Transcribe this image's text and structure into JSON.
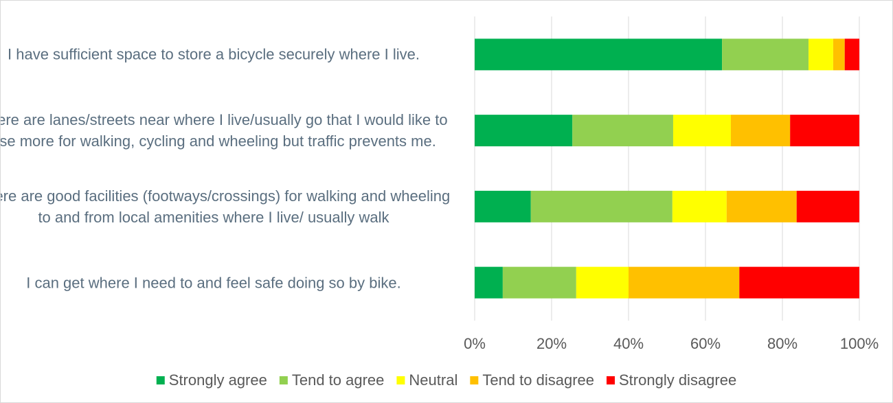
{
  "chart_data": {
    "type": "stacked_barh",
    "categories": [
      "I have sufficient space to store a bicycle securely where I live.",
      "There are lanes/streets near where I live/usually go that I would like to use more for walking, cycling and wheeling but traffic prevents me.",
      "There are good facilities (footways/crossings) for walking and wheeling to and from local amenities where I live/ usually walk",
      "I can get where I need to and feel safe doing so by bike."
    ],
    "series": [
      {
        "name": "Strongly agree",
        "color": "#00b050",
        "values": [
          64.3,
          25.4,
          14.6,
          7.3
        ]
      },
      {
        "name": "Tend to agree",
        "color": "#92d050",
        "values": [
          22.5,
          26.2,
          36.8,
          19.1
        ]
      },
      {
        "name": "Neutral",
        "color": "#ffff00",
        "values": [
          6.4,
          15.0,
          14.1,
          13.6
        ]
      },
      {
        "name": "Tend to disagree",
        "color": "#ffc000",
        "values": [
          3.0,
          15.4,
          18.2,
          28.8
        ]
      },
      {
        "name": "Strongly disagree",
        "color": "#ff0000",
        "values": [
          3.8,
          18.0,
          16.3,
          31.2
        ]
      }
    ],
    "xlim": [
      0,
      100
    ],
    "xticks": [
      {
        "value": 0,
        "label": "0%"
      },
      {
        "value": 20,
        "label": "20%"
      },
      {
        "value": 40,
        "label": "40%"
      },
      {
        "value": 60,
        "label": "60%"
      },
      {
        "value": 80,
        "label": "80%"
      },
      {
        "value": 100,
        "label": "100%"
      }
    ],
    "grid": true,
    "legend": "bottom"
  }
}
